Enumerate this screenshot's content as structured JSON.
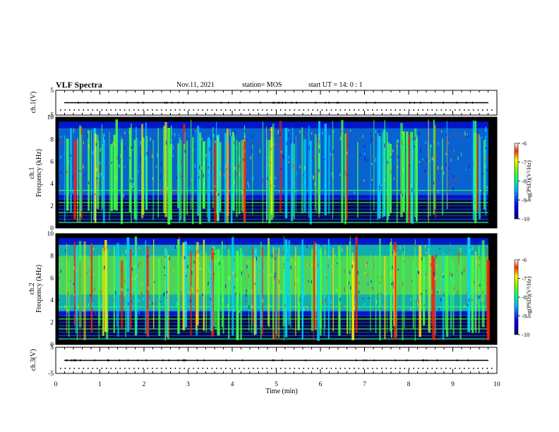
{
  "header": {
    "title": "VLF Spectra",
    "date": "Nov.11, 2021",
    "station": "station= MOS",
    "start_ut": "start  UT =   14: 0  : 1"
  },
  "chart_data": [
    {
      "type": "line",
      "panel": "ch1-waveform",
      "ylabel": "ch.1(V)",
      "ylim": [
        -5,
        5
      ],
      "yticks": [
        5,
        -5
      ],
      "xlim": [
        0,
        10
      ],
      "series_level": 0
    },
    {
      "type": "heatmap",
      "panel": "ch1-spectrogram",
      "ylabel": "ch.1\nFrequency (kHz)",
      "ylabel_line1": "ch.1",
      "ylabel_line2": "Frequency (kHz)",
      "ylim": [
        0,
        10
      ],
      "yticks": [
        0,
        2,
        4,
        6,
        8,
        10
      ],
      "xlim": [
        0,
        10
      ],
      "colorbar": {
        "label": "log(PSD)(V²/Hz)",
        "range": [
          -10,
          -6
        ],
        "ticks": [
          -6,
          -7,
          -8,
          -9,
          -10
        ]
      }
    },
    {
      "type": "heatmap",
      "panel": "ch2-spectrogram",
      "ylabel": "ch.2\nFrequency (kHz)",
      "ylabel_line1": "ch.2",
      "ylabel_line2": "Frequency (kHz)",
      "ylim": [
        0,
        10
      ],
      "yticks": [
        0,
        2,
        4,
        6,
        8,
        10
      ],
      "xlim": [
        0,
        10
      ],
      "colorbar": {
        "label": "log(PSD)(V²/Hz)",
        "range": [
          -10,
          -6
        ],
        "ticks": [
          -6,
          -7,
          -8,
          -9,
          -10
        ]
      }
    },
    {
      "type": "line",
      "panel": "ch3-waveform",
      "ylabel": "ch.3(V)",
      "ylim": [
        -5,
        5
      ],
      "yticks": [
        5,
        -5
      ],
      "xlim": [
        0,
        10
      ],
      "xlabel": "Time  (min)",
      "xticks": [
        0,
        1,
        2,
        3,
        4,
        5,
        6,
        7,
        8,
        9,
        10
      ],
      "series_level": 0
    }
  ],
  "colors": {
    "bg_dark": "#000000",
    "blue": "#0000ff",
    "cyan": "#00e0e0",
    "green": "#40ff40",
    "yellow": "#ffff00",
    "red": "#ff0000"
  }
}
